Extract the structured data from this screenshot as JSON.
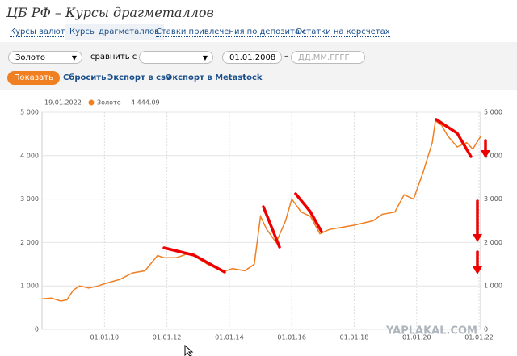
{
  "header": {
    "title": "ЦБ РФ – Курсы драгметаллов"
  },
  "tabs": [
    "Курсы валют",
    "Курсы драгметаллов",
    "Ставки привлечения по депозитам",
    "Остатки на корсчетах"
  ],
  "form": {
    "metal": "Золото",
    "compare_label": "сравнить с",
    "date_from": "01.01.2008",
    "dash": "–",
    "date_to_placeholder": "ДД.ММ.ГГГГ"
  },
  "buttons": [
    "Показать",
    "Сбросить",
    "Экспорт в csv",
    "Экспорт в Metastock"
  ],
  "watermark": "YAPLAKAL.COM",
  "chart_data": {
    "type": "line",
    "cursor": {
      "date": "19.01.2022",
      "label": "4 444.09"
    },
    "x": [
      2008.0,
      2008.3,
      2008.6,
      2008.8,
      2009.0,
      2009.2,
      2009.5,
      2009.8,
      2010.0,
      2010.5,
      2010.9,
      2011.3,
      2011.7,
      2011.9,
      2012.3,
      2012.7,
      2012.9,
      2013.3,
      2013.6,
      2013.9,
      2014.1,
      2014.5,
      2014.8,
      2015.0,
      2015.2,
      2015.5,
      2015.8,
      2016.0,
      2016.3,
      2016.6,
      2016.9,
      2017.2,
      2017.6,
      2018.0,
      2018.6,
      2018.9,
      2019.3,
      2019.6,
      2019.9,
      2020.2,
      2020.5,
      2020.6,
      2020.8,
      2021.0,
      2021.3,
      2021.6,
      2021.8,
      2022.05
    ],
    "series": [
      {
        "name": "Золото",
        "color": "#f07f22",
        "values": [
          700,
          720,
          650,
          680,
          900,
          1000,
          950,
          1000,
          1050,
          1150,
          1300,
          1350,
          1700,
          1650,
          1650,
          1750,
          1680,
          1500,
          1400,
          1350,
          1400,
          1350,
          1500,
          2600,
          2300,
          2000,
          2500,
          3000,
          2700,
          2600,
          2200,
          2300,
          2350,
          2400,
          2500,
          2650,
          2700,
          3100,
          3000,
          3600,
          4300,
          4800,
          4700,
          4450,
          4200,
          4300,
          4150,
          4444.09
        ]
      }
    ],
    "xlim": [
      2008.0,
      2022.05
    ],
    "xticks": [
      {
        "value": 2010,
        "label": "01.01.10"
      },
      {
        "value": 2012,
        "label": "01.01.12"
      },
      {
        "value": 2014,
        "label": "01.01.14"
      },
      {
        "value": 2016,
        "label": "01.01.16"
      },
      {
        "value": 2018,
        "label": "01.01.18"
      },
      {
        "value": 2020,
        "label": "01.01.20"
      },
      {
        "value": 2022,
        "label": "01.01.22"
      }
    ],
    "ylim": [
      0,
      5000
    ],
    "yticks": [
      0,
      {
        "value": 1000,
        "label": "1 000"
      },
      {
        "value": 2000,
        "label": "2 000"
      },
      {
        "value": 3000,
        "label": "3 000"
      },
      {
        "value": 4000,
        "label": "4 000"
      },
      {
        "value": 5000,
        "label": "5 000"
      }
    ],
    "grid": true
  }
}
